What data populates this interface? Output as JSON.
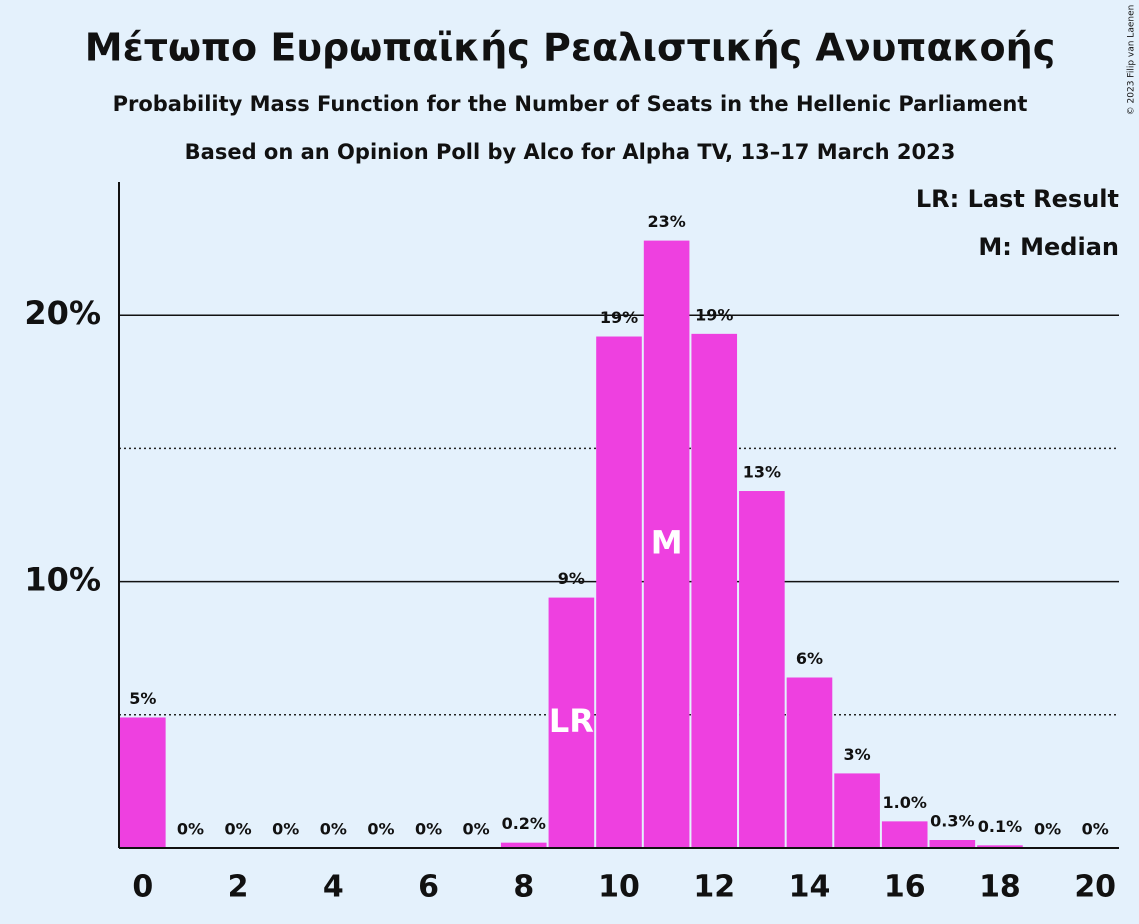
{
  "chart_data": {
    "type": "bar",
    "title": "Μέτωπο Ευρωπαϊκής Ρεαλιστικής Ανυπακοής",
    "subtitle": "Probability Mass Function for the Number of Seats in the Hellenic Parliament",
    "subtitle2": "Based on an Opinion Poll by Alco for Alpha TV, 13–17 March 2023",
    "copyright": "© 2023 Filip van Laenen",
    "x": [
      0,
      1,
      2,
      3,
      4,
      5,
      6,
      7,
      8,
      9,
      10,
      11,
      12,
      13,
      14,
      15,
      16,
      17,
      18,
      19,
      20
    ],
    "values": [
      4.9,
      0,
      0,
      0,
      0,
      0,
      0,
      0,
      0.2,
      9.4,
      19.2,
      22.8,
      19.3,
      13.4,
      6.4,
      2.8,
      1.0,
      0.3,
      0.1,
      0,
      0
    ],
    "value_labels": [
      "5%",
      "0%",
      "0%",
      "0%",
      "0%",
      "0%",
      "0%",
      "0%",
      "0.2%",
      "9%",
      "19%",
      "23%",
      "19%",
      "13%",
      "6%",
      "3%",
      "1.0%",
      "0.3%",
      "0.1%",
      "0%",
      "0%"
    ],
    "color": "#ee40e0",
    "xlim": [
      -0.5,
      20.5
    ],
    "xticks": [
      0,
      2,
      4,
      6,
      8,
      10,
      12,
      14,
      16,
      18,
      20
    ],
    "ylim": [
      0,
      25
    ],
    "yticks": [
      {
        "value": 10,
        "label": "10%"
      },
      {
        "value": 20,
        "label": "20%"
      }
    ],
    "minor_yticks": [
      5,
      15
    ],
    "grid": true,
    "annotations": [
      {
        "x": 9,
        "text": "LR"
      },
      {
        "x": 11,
        "text": "M"
      }
    ],
    "legend": [
      "LR: Last Result",
      "M: Median"
    ],
    "legend_position": "upper right"
  }
}
